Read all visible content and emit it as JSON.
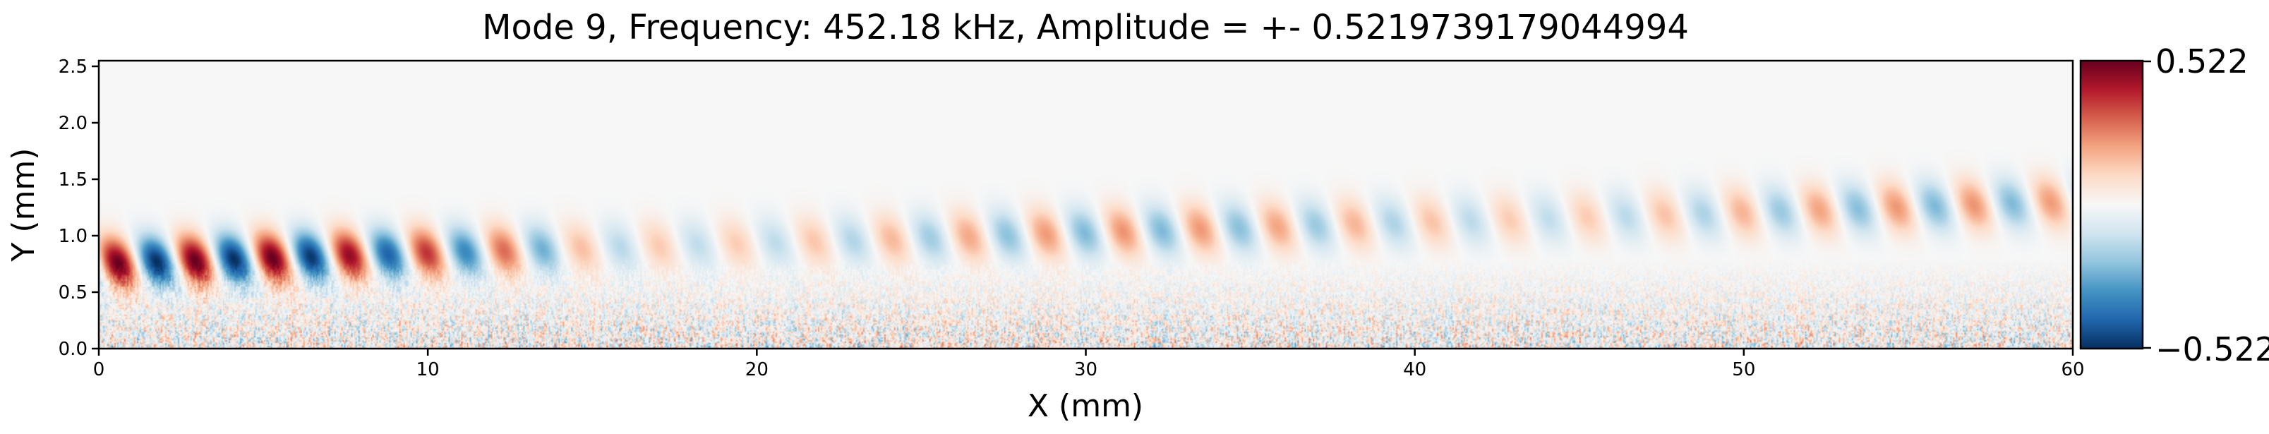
{
  "chart_data": {
    "type": "heatmap",
    "title": "Mode 9, Frequency: 452.18 kHz, Amplitude = +- 0.5219739179044994",
    "xlabel": "X (mm)",
    "ylabel": "Y (mm)",
    "xlim": [
      0,
      60
    ],
    "ylim": [
      0,
      2.55
    ],
    "xticks": [
      "0",
      "10",
      "20",
      "30",
      "40",
      "50",
      "60"
    ],
    "yticks": [
      "0.0",
      "0.5",
      "1.0",
      "1.5",
      "2.0",
      "2.5"
    ],
    "colormap": "RdBu_r",
    "colorbar": {
      "max_label": "0.522",
      "min_label": "−0.522",
      "vmin": -0.522,
      "vmax": 0.522
    },
    "colors": {
      "positive_extreme": "#67001f",
      "negative_extreme": "#053061",
      "zero": "#f7f7f7"
    },
    "field_description": {
      "wave_band_center_y": [
        0.75,
        1.3
      ],
      "wavelength_mm": 2.35,
      "noise_floor_y_max": 0.8
    }
  }
}
